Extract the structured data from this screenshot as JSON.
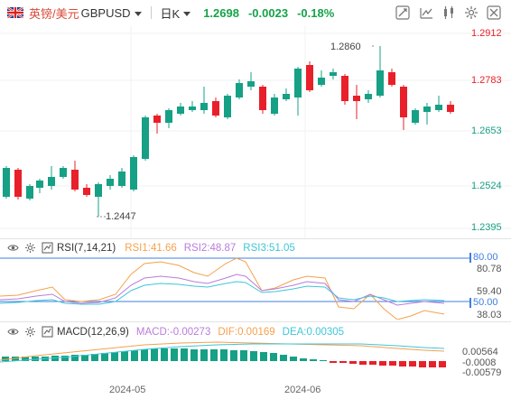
{
  "header": {
    "symbol_cn": "英镑/美元",
    "symbol_code": "GBPUSD",
    "timeframe": "日K",
    "price": "1.2698",
    "change": "-0.0023",
    "change_pct": "-0.18%"
  },
  "toolbar_icons": [
    "drawing-tools-icon",
    "chart-type-icon",
    "indicators-icon",
    "settings-icon",
    "fullscreen-icon"
  ],
  "colors": {
    "up": "#16a085",
    "down": "#e8202a",
    "rsi1": "#f5a14d",
    "rsi2": "#b97cdc",
    "rsi3": "#3ec6d8",
    "dif": "#f5a14d",
    "dea": "#3ec6d8",
    "hline": "#3f7fe0"
  },
  "price_axis": [
    "1.2912",
    "1.2783",
    "1.2653",
    "1.2524",
    "1.2395"
  ],
  "annotations": {
    "high": "1.2860",
    "low": "1.2447"
  },
  "rsi": {
    "title": "RSI(7,14,21)",
    "rsi1": "RSI1:41.66",
    "rsi2": "RSI2:48.87",
    "rsi3": "RSI3:51.05",
    "axis": [
      "80.00",
      "80.78",
      "59.40",
      "50.00",
      "38.03"
    ]
  },
  "macd": {
    "title": "MACD(12,26,9)",
    "macd": "MACD:-0.00273",
    "dif": "DIF:0.00169",
    "dea": "DEA:0.00305",
    "axis": [
      "0.00564",
      "-0.0008",
      "-0.00579"
    ]
  },
  "time_axis": [
    "2024-05",
    "2024-06"
  ]
}
